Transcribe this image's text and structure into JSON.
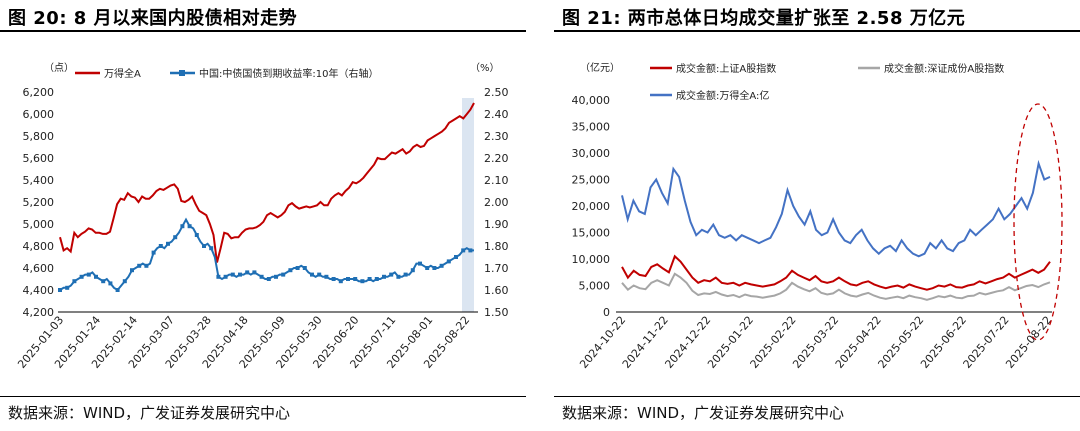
{
  "chart_data": [
    {
      "type": "line",
      "figure_label": "图 20:",
      "title": "8 月以来国内股债相对走势",
      "source": "数据来源：WIND，广发证券发展研究中心",
      "left_unit": "（点）",
      "right_unit": "（%）",
      "y_left_ticks": [
        "6,200",
        "6,000",
        "5,800",
        "5,600",
        "5,400",
        "5,200",
        "5,000",
        "4,800",
        "4,600",
        "4,400",
        "4,200"
      ],
      "y_right_ticks": [
        "2.50",
        "2.40",
        "2.30",
        "2.20",
        "2.10",
        "2.00",
        "1.90",
        "1.80",
        "1.70",
        "1.60",
        "1.50"
      ],
      "y_left_range": [
        4200,
        6200
      ],
      "y_right_range": [
        1.5,
        2.5
      ],
      "x_ticks": [
        "2025-01-03",
        "2025-01-24",
        "2025-02-14",
        "2025-03-07",
        "2025-03-28",
        "2025-04-18",
        "2025-05-09",
        "2025-05-30",
        "2025-06-20",
        "2025-07-11",
        "2025-08-01",
        "2025-08-22"
      ],
      "highlight": {
        "from": "2025-08-01 (approx.)",
        "to": "2025-08-22",
        "color": "#dbe5f1"
      },
      "series": [
        {
          "name": "万得全A",
          "axis": "left",
          "color": "#c00000",
          "values": [
            4880,
            4760,
            4780,
            4750,
            4920,
            4880,
            4910,
            4930,
            4960,
            4950,
            4920,
            4920,
            4910,
            4910,
            4930,
            5050,
            5180,
            5230,
            5220,
            5280,
            5250,
            5240,
            5200,
            5250,
            5230,
            5230,
            5260,
            5300,
            5320,
            5310,
            5330,
            5350,
            5360,
            5320,
            5210,
            5200,
            5220,
            5250,
            5180,
            5120,
            5100,
            5080,
            5000,
            4900,
            4650,
            4780,
            4920,
            4910,
            4870,
            4880,
            4880,
            4920,
            4950,
            4960,
            4960,
            4970,
            4990,
            5020,
            5080,
            5100,
            5080,
            5060,
            5080,
            5110,
            5170,
            5190,
            5160,
            5140,
            5150,
            5160,
            5150,
            5160,
            5170,
            5200,
            5170,
            5170,
            5230,
            5260,
            5280,
            5260,
            5300,
            5330,
            5380,
            5370,
            5390,
            5420,
            5460,
            5500,
            5540,
            5600,
            5590,
            5590,
            5620,
            5650,
            5640,
            5660,
            5680,
            5640,
            5660,
            5700,
            5720,
            5700,
            5710,
            5760,
            5780,
            5800,
            5820,
            5840,
            5870,
            5920,
            5940,
            5960,
            5980,
            5960,
            6000,
            6040,
            6100
          ]
        },
        {
          "name": "中国:中债国债到期收益率:10年（右轴）",
          "axis": "right",
          "color": "#1f6fb4",
          "values": [
            1.6,
            1.61,
            1.61,
            1.62,
            1.64,
            1.65,
            1.66,
            1.67,
            1.67,
            1.68,
            1.66,
            1.65,
            1.64,
            1.65,
            1.63,
            1.61,
            1.6,
            1.62,
            1.64,
            1.66,
            1.69,
            1.7,
            1.71,
            1.72,
            1.71,
            1.72,
            1.77,
            1.79,
            1.8,
            1.79,
            1.81,
            1.82,
            1.84,
            1.86,
            1.89,
            1.92,
            1.89,
            1.88,
            1.85,
            1.82,
            1.8,
            1.81,
            1.79,
            1.75,
            1.66,
            1.65,
            1.66,
            1.67,
            1.67,
            1.66,
            1.67,
            1.67,
            1.68,
            1.67,
            1.68,
            1.67,
            1.66,
            1.65,
            1.65,
            1.66,
            1.66,
            1.67,
            1.67,
            1.68,
            1.69,
            1.7,
            1.7,
            1.71,
            1.7,
            1.68,
            1.67,
            1.66,
            1.67,
            1.66,
            1.66,
            1.65,
            1.65,
            1.65,
            1.64,
            1.65,
            1.65,
            1.65,
            1.65,
            1.64,
            1.64,
            1.64,
            1.65,
            1.64,
            1.65,
            1.65,
            1.66,
            1.66,
            1.67,
            1.68,
            1.66,
            1.66,
            1.67,
            1.67,
            1.69,
            1.72,
            1.72,
            1.71,
            1.7,
            1.71,
            1.7,
            1.7,
            1.71,
            1.72,
            1.73,
            1.74,
            1.75,
            1.76,
            1.78,
            1.79,
            1.78,
            1.78
          ]
        }
      ]
    },
    {
      "type": "line",
      "figure_label": "图 21:",
      "title": "两市总体日均成交量扩张至 2.58 万亿元",
      "source": "数据来源：WIND，广发证券发展研究中心",
      "unit": "（亿元）",
      "y_ticks": [
        "40,000",
        "35,000",
        "30,000",
        "25,000",
        "20,000",
        "15,000",
        "10,000",
        "5,000",
        "0"
      ],
      "y_range": [
        0,
        40000
      ],
      "x_ticks": [
        "2024-10-22",
        "2024-11-22",
        "2024-12-22",
        "2025-01-22",
        "2025-02-22",
        "2025-03-22",
        "2025-04-22",
        "2025-05-22",
        "2025-06-22",
        "2025-07-22",
        "2025-08-22"
      ],
      "annotation": {
        "shape": "dashed ellipse",
        "color": "#c00000"
      },
      "series": [
        {
          "name": "成交金额:上证A股指数",
          "color": "#c00000",
          "values": [
            8500,
            6500,
            7800,
            7000,
            6800,
            8500,
            9000,
            8200,
            7500,
            10500,
            9500,
            8000,
            6500,
            5500,
            6000,
            5800,
            6500,
            5500,
            5300,
            5500,
            5000,
            5500,
            5200,
            5000,
            4800,
            5000,
            5200,
            5800,
            6500,
            7800,
            7000,
            6500,
            6000,
            6800,
            5800,
            5500,
            5800,
            6500,
            5800,
            5200,
            5000,
            5500,
            5800,
            5200,
            4800,
            4500,
            4800,
            5000,
            4600,
            5200,
            4800,
            4500,
            4200,
            4500,
            5000,
            4800,
            5200,
            4700,
            4600,
            5000,
            5200,
            5800,
            5400,
            5800,
            6200,
            6500,
            7200,
            6500,
            7000,
            7500,
            8000,
            7400,
            8000,
            9500
          ]
        },
        {
          "name": "成交金额:深证成份A股指数",
          "color": "#a6a6a6",
          "values": [
            5500,
            4200,
            5000,
            4500,
            4300,
            5500,
            6000,
            5500,
            5000,
            7200,
            6500,
            5500,
            4000,
            3200,
            3500,
            3400,
            3800,
            3300,
            3000,
            3200,
            2800,
            3300,
            3000,
            2900,
            2700,
            2900,
            3100,
            3500,
            4200,
            5500,
            4800,
            4300,
            3900,
            4500,
            3600,
            3300,
            3500,
            4200,
            3500,
            3100,
            2900,
            3300,
            3600,
            3100,
            2700,
            2500,
            2700,
            2900,
            2600,
            3100,
            2800,
            2600,
            2300,
            2600,
            3000,
            2800,
            3100,
            2700,
            2600,
            3000,
            3100,
            3600,
            3300,
            3600,
            3900,
            4100,
            4700,
            4100,
            4500,
            4900,
            5100,
            4700,
            5200,
            5600
          ]
        },
        {
          "name": "成交金额:万得全A:亿",
          "color": "#4472c4",
          "values": [
            22000,
            17500,
            21000,
            19000,
            18500,
            23500,
            25000,
            22500,
            20500,
            27000,
            25500,
            21000,
            17000,
            14500,
            15500,
            15000,
            16500,
            14500,
            14000,
            14500,
            13500,
            14500,
            14000,
            13500,
            13000,
            13500,
            14000,
            16000,
            18500,
            23000,
            20000,
            18000,
            16500,
            19000,
            15500,
            14500,
            15000,
            17500,
            15000,
            13500,
            13000,
            14500,
            15500,
            13500,
            12000,
            11000,
            12000,
            12500,
            11500,
            13500,
            12000,
            11000,
            10500,
            11000,
            13000,
            12000,
            13500,
            12000,
            11500,
            13000,
            13500,
            15500,
            14500,
            15500,
            16500,
            17500,
            19500,
            17500,
            18500,
            20000,
            21500,
            19500,
            22500,
            28000,
            25000,
            25500
          ]
        }
      ]
    }
  ]
}
